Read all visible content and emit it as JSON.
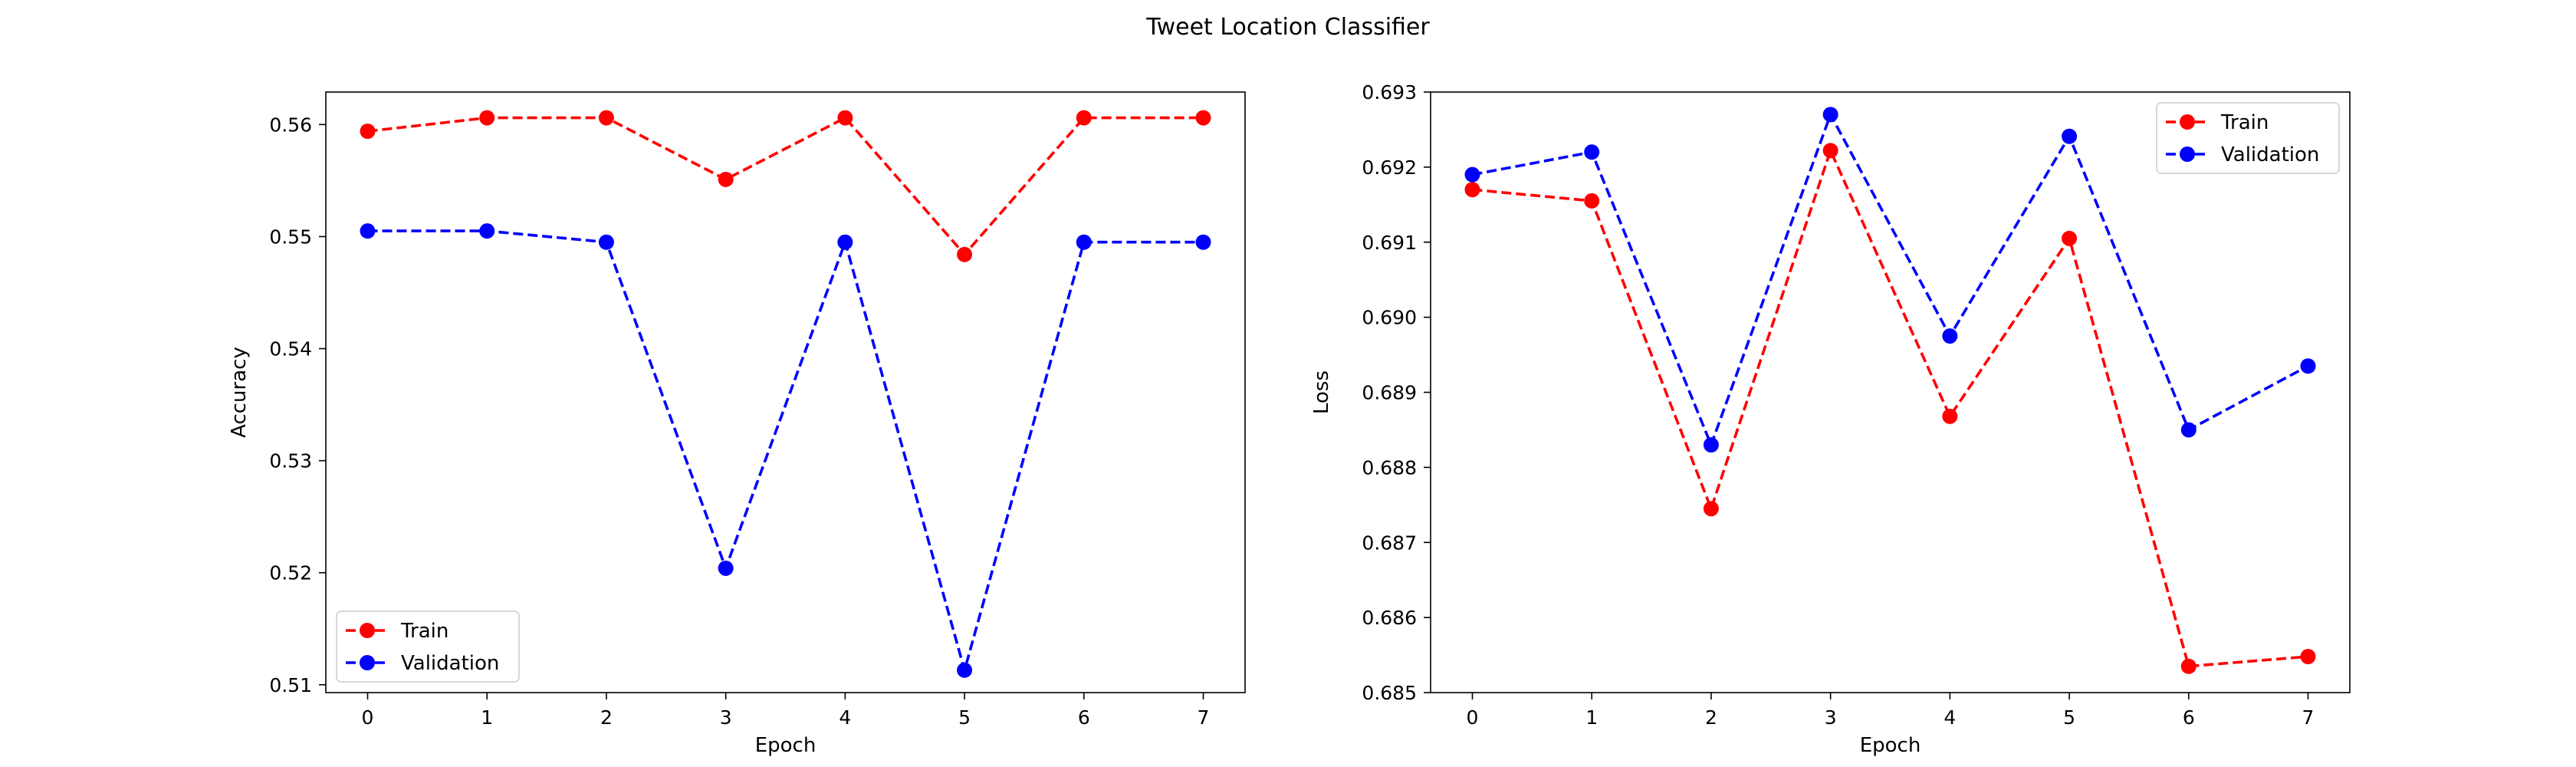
{
  "title": "Tweet Location Classifier",
  "colors": {
    "train": "#ff0000",
    "validation": "#0000ff",
    "axes": "#000000",
    "background": "#ffffff"
  },
  "chart_data": [
    {
      "type": "line",
      "xlabel": "Epoch",
      "ylabel": "Accuracy",
      "x": [
        0,
        1,
        2,
        3,
        4,
        5,
        6,
        7
      ],
      "xlim": [
        -0.35,
        7.35
      ],
      "ylim": [
        0.5093,
        0.5629
      ],
      "xticks": [
        0,
        1,
        2,
        3,
        4,
        5,
        6,
        7
      ],
      "yticks": [
        0.51,
        0.52,
        0.53,
        0.54,
        0.55,
        0.56
      ],
      "ytick_labels": [
        "0.51",
        "0.52",
        "0.53",
        "0.54",
        "0.55",
        "0.56"
      ],
      "legend": "lower-left",
      "grid": false,
      "series": [
        {
          "name": "Train",
          "color": "#ff0000",
          "line_style": "dashed",
          "marker": "circle",
          "values": [
            0.5594,
            0.5606,
            0.5606,
            0.5551,
            0.5606,
            0.5484,
            0.5606,
            0.5606
          ]
        },
        {
          "name": "Validation",
          "color": "#0000ff",
          "line_style": "dashed",
          "marker": "circle",
          "values": [
            0.5505,
            0.5505,
            0.5495,
            0.5204,
            0.5495,
            0.5113,
            0.5495,
            0.5495
          ]
        }
      ]
    },
    {
      "type": "line",
      "xlabel": "Epoch",
      "ylabel": "Loss",
      "x": [
        0,
        1,
        2,
        3,
        4,
        5,
        6,
        7
      ],
      "xlim": [
        -0.35,
        7.35
      ],
      "ylim": [
        0.685,
        0.693
      ],
      "xticks": [
        0,
        1,
        2,
        3,
        4,
        5,
        6,
        7
      ],
      "yticks": [
        0.685,
        0.686,
        0.687,
        0.688,
        0.689,
        0.69,
        0.691,
        0.692,
        0.693
      ],
      "ytick_labels": [
        "0.685",
        "0.686",
        "0.687",
        "0.688",
        "0.689",
        "0.690",
        "0.691",
        "0.692",
        "0.693"
      ],
      "legend": "upper-right",
      "grid": false,
      "series": [
        {
          "name": "Train",
          "color": "#ff0000",
          "line_style": "dashed",
          "marker": "circle",
          "values": [
            0.6917,
            0.69155,
            0.68745,
            0.69222,
            0.68868,
            0.69105,
            0.68535,
            0.68548
          ]
        },
        {
          "name": "Validation",
          "color": "#0000ff",
          "line_style": "dashed",
          "marker": "circle",
          "values": [
            0.6919,
            0.6922,
            0.6883,
            0.6927,
            0.68975,
            0.69241,
            0.6885,
            0.68935
          ]
        }
      ]
    }
  ]
}
